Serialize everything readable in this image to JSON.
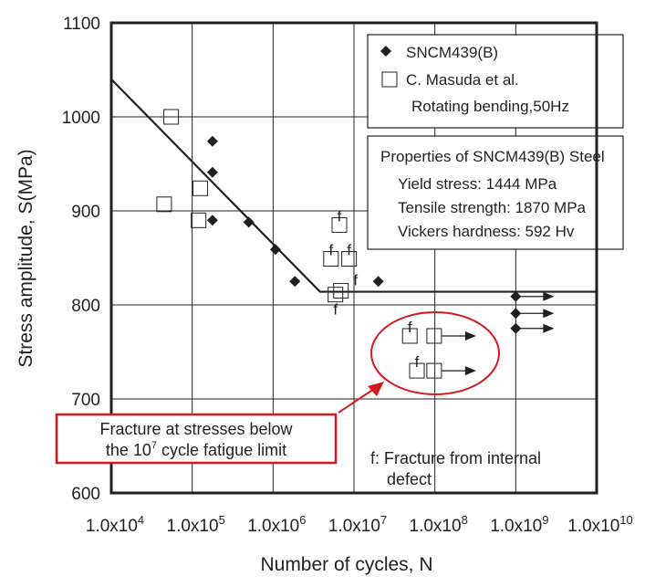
{
  "chart_data": {
    "type": "scatter",
    "xlabel": "Number of cycles,  N",
    "ylabel": "Stress amplitude,  S(MPa)",
    "x_scale": "log",
    "xlim": [
      10000,
      10000000000
    ],
    "ylim": [
      600,
      1100
    ],
    "grid": true,
    "x_ticks": [
      {
        "base": "1.0x10",
        "exp": "4"
      },
      {
        "base": "1.0x10",
        "exp": "5"
      },
      {
        "base": "1.0x10",
        "exp": "6"
      },
      {
        "base": "1.0x10",
        "exp": "7"
      },
      {
        "base": "1.0x10",
        "exp": "8"
      },
      {
        "base": "1.0x10",
        "exp": "9"
      },
      {
        "base": "1.0x10",
        "exp": "10"
      }
    ],
    "y_ticks": [
      "600",
      "700",
      "800",
      "900",
      "1000",
      "1100"
    ],
    "series": [
      {
        "name": "SNCM439(B)",
        "marker": "diamond",
        "points": [
          {
            "N": 178000,
            "S": 974
          },
          {
            "N": 178000,
            "S": 941
          },
          {
            "N": 178000,
            "S": 890
          },
          {
            "N": 500000,
            "S": 888
          },
          {
            "N": 1070000,
            "S": 859
          },
          {
            "N": 1860000,
            "S": 825
          },
          {
            "N": 20000000,
            "S": 825
          },
          {
            "N": 1000000000,
            "S": 809,
            "runout": true
          },
          {
            "N": 1000000000,
            "S": 791,
            "runout": true
          },
          {
            "N": 1000000000,
            "S": 775,
            "runout": true
          }
        ]
      },
      {
        "name": "C. Masuda et al.",
        "marker": "square",
        "points": [
          {
            "N": 55000,
            "S": 1000
          },
          {
            "N": 45000,
            "S": 907
          },
          {
            "N": 126000,
            "S": 924
          },
          {
            "N": 120000,
            "S": 890
          },
          {
            "N": 6600000,
            "S": 885,
            "internal_defect": true,
            "f_side": "above"
          },
          {
            "N": 5200000,
            "S": 849,
            "internal_defect": true,
            "f_side": "above"
          },
          {
            "N": 8700000,
            "S": 849,
            "internal_defect": true,
            "f_side": "above"
          },
          {
            "N": 5900000,
            "S": 811,
            "internal_defect": true,
            "f_side": "below"
          },
          {
            "N": 6900000,
            "S": 815,
            "internal_defect": true,
            "f_side": "right"
          },
          {
            "N": 49000000,
            "S": 767,
            "internal_defect": true,
            "f_side": "above"
          },
          {
            "N": 98000000,
            "S": 767,
            "runout": true
          },
          {
            "N": 60000000,
            "S": 730,
            "internal_defect": true,
            "f_side": "above"
          },
          {
            "N": 98000000,
            "S": 730,
            "runout": true
          }
        ]
      }
    ],
    "sn_curve": [
      {
        "N": 10000,
        "S": 1040
      },
      {
        "N": 3800000,
        "S": 814
      },
      {
        "N": 10000000000,
        "S": 814
      }
    ],
    "fracture_mark": "f",
    "legend": {
      "placement": "top-right",
      "entries": [
        "SNCM439(B)",
        "C. Masuda et al."
      ],
      "subtitle": "Rotating bending,50Hz"
    },
    "properties_box": {
      "title": "Properties of SNCM439(B) Steel",
      "lines": [
        "Yield stress: 1444 MPa",
        "Tensile strength: 1870 MPa",
        "Vickers hardness: 592 Hv"
      ]
    },
    "annotation": {
      "line1": "Fracture at stresses below",
      "line2_pre": "the 10",
      "line2_sup": "7",
      "line2_post": " cycle fatigue limit",
      "color": "#d7191f"
    },
    "footnote": {
      "line1": "f: Fracture from internal",
      "line2": "defect"
    }
  }
}
